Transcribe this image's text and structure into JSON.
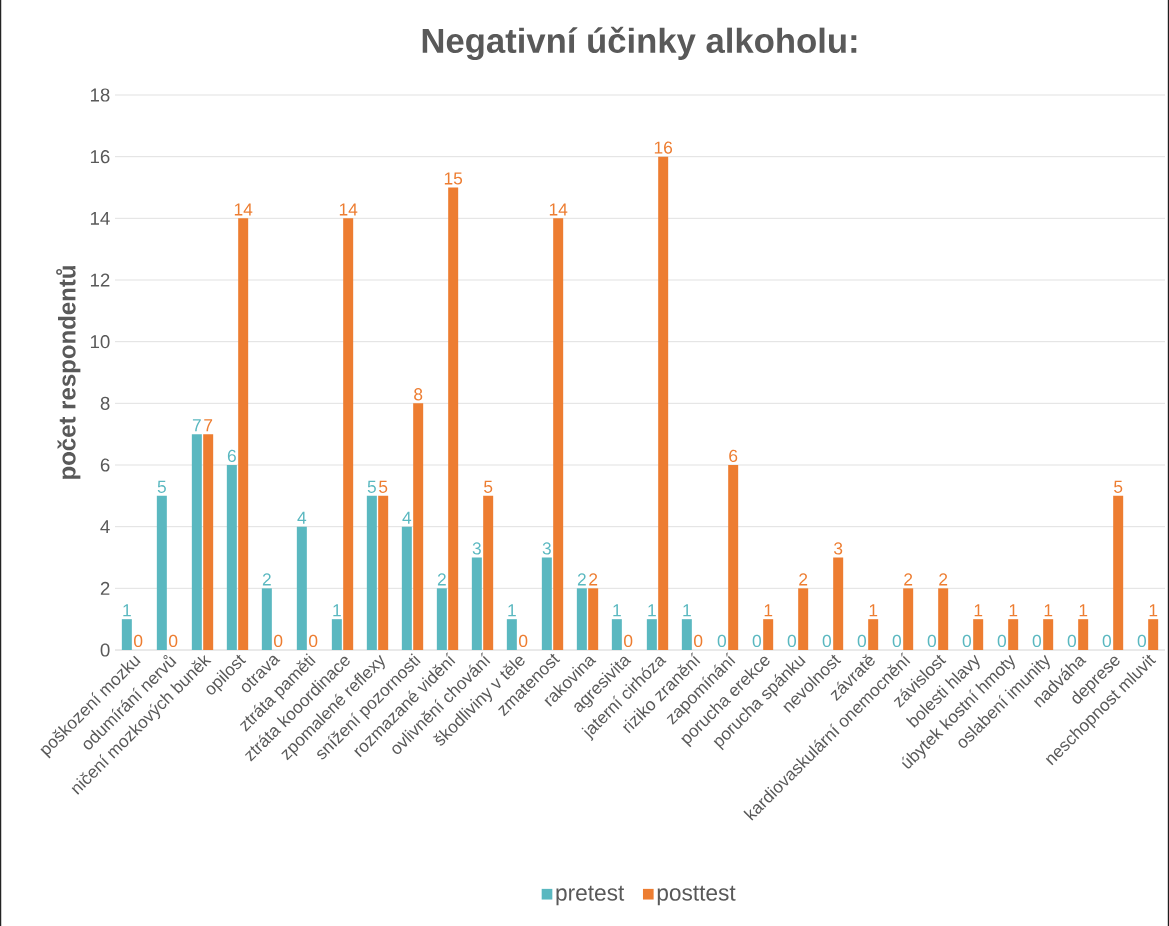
{
  "chart_data": {
    "type": "bar",
    "title": "Negativní účinky alkoholu:",
    "ylabel": "počet respondentů",
    "categories": [
      "poškození mozku",
      "odumírání nervů",
      "ničení mozkových buněk",
      "opilost",
      "otrava",
      "ztráta paměti",
      "ztráta kooordinace",
      "zpomalené reflexy",
      "snížení pozornosti",
      "rozmazané vidění",
      "ovlivnění chování",
      "škodliviny v těle",
      "zmatenost",
      "rakovina",
      "agresivita",
      "jaterní cirhóza",
      "riziko zranění",
      "zapomínání",
      "porucha erekce",
      "porucha spánku",
      "nevolnost",
      "závratě",
      "kardiovaskulární onemocnění",
      "závislost",
      "bolesti hlavy",
      "úbytek kostní hmoty",
      "oslabení imunity",
      "nadváha",
      "deprese",
      "neschopnost mluvit"
    ],
    "series": [
      {
        "name": "pretest",
        "color": "#5ab8c0",
        "values": [
          1,
          5,
          7,
          6,
          2,
          4,
          1,
          5,
          4,
          2,
          3,
          1,
          3,
          2,
          1,
          1,
          1,
          0,
          0,
          0,
          0,
          0,
          0,
          0,
          0,
          0,
          0,
          0,
          0,
          0
        ]
      },
      {
        "name": "posttest",
        "color": "#ed7d31",
        "values": [
          0,
          0,
          7,
          14,
          0,
          0,
          14,
          5,
          8,
          15,
          5,
          0,
          14,
          2,
          0,
          16,
          0,
          6,
          1,
          2,
          3,
          1,
          2,
          2,
          1,
          1,
          1,
          1,
          5,
          1
        ]
      }
    ],
    "ylim": [
      0,
      18
    ],
    "yticks": [
      0,
      2,
      4,
      6,
      8,
      10,
      12,
      14,
      16,
      18
    ],
    "grid": "y",
    "legend": "bottom",
    "data_labels": true
  }
}
